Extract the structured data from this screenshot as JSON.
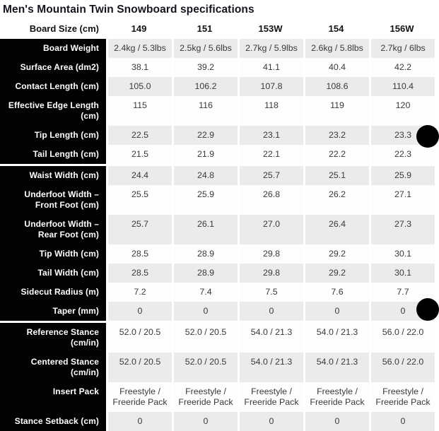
{
  "page": {
    "title": "Men's Mountain Twin Snowboard specifications"
  },
  "table": {
    "header": {
      "label": "Board Size (cm)",
      "columns": [
        "149",
        "151",
        "153W",
        "154",
        "156W"
      ]
    },
    "rows": [
      {
        "label": "Board Weight",
        "values": [
          "2.4kg / 5.3lbs",
          "2.5kg / 5.6lbs",
          "2.7kg / 5.9lbs",
          "2.6kg / 5.8lbs",
          "2.7kg / 6lbs"
        ],
        "group_start": false
      },
      {
        "label": "Surface Area (dm2)",
        "values": [
          "38.1",
          "39.2",
          "41.1",
          "40.4",
          "42.2"
        ],
        "group_start": false
      },
      {
        "label": "Contact Length (cm)",
        "values": [
          "105.0",
          "106.2",
          "107.8",
          "108.6",
          "110.4"
        ],
        "group_start": false
      },
      {
        "label": "Effective Edge Length (cm)",
        "values": [
          "115",
          "116",
          "118",
          "119",
          "120"
        ],
        "group_start": false
      },
      {
        "label": "Tip Length (cm)",
        "values": [
          "22.5",
          "22.9",
          "23.1",
          "23.2",
          "23.3"
        ],
        "group_start": false
      },
      {
        "label": "Tail Length (cm)",
        "values": [
          "21.5",
          "21.9",
          "22.1",
          "22.2",
          "22.3"
        ],
        "group_start": false
      },
      {
        "label": "Waist Width (cm)",
        "values": [
          "24.4",
          "24.8",
          "25.7",
          "25.1",
          "25.9"
        ],
        "group_start": true
      },
      {
        "label": "Underfoot Width – Front Foot (cm)",
        "values": [
          "25.5",
          "25.9",
          "26.8",
          "26.2",
          "27.1"
        ],
        "group_start": false
      },
      {
        "label": "Underfoot Width – Rear Foot (cm)",
        "values": [
          "25.7",
          "26.1",
          "27.0",
          "26.4",
          "27.3"
        ],
        "group_start": false
      },
      {
        "label": "Tip Width (cm)",
        "values": [
          "28.5",
          "28.9",
          "29.8",
          "29.2",
          "30.1"
        ],
        "group_start": false
      },
      {
        "label": "Tail Width (cm)",
        "values": [
          "28.5",
          "28.9",
          "29.8",
          "29.2",
          "30.1"
        ],
        "group_start": false
      },
      {
        "label": "Sidecut Radius (m)",
        "values": [
          "7.2",
          "7.4",
          "7.5",
          "7.6",
          "7.7"
        ],
        "group_start": false
      },
      {
        "label": "Taper (mm)",
        "values": [
          "0",
          "0",
          "0",
          "0",
          "0"
        ],
        "group_start": false
      },
      {
        "label": "Reference Stance (cm/in)",
        "values": [
          "52.0 / 20.5",
          "52.0 / 20.5",
          "54.0 / 21.3",
          "54.0 / 21.3",
          "56.0 / 22.0"
        ],
        "group_start": true
      },
      {
        "label": "Centered Stance (cm/in)",
        "values": [
          "52.0 / 20.5",
          "52.0 / 20.5",
          "54.0 / 21.3",
          "54.0 / 21.3",
          "56.0 / 22.0"
        ],
        "group_start": false
      },
      {
        "label": "Insert Pack",
        "values": [
          "Freestyle / Freeride Pack",
          "Freestyle / Freeride Pack",
          "Freestyle / Freeride Pack",
          "Freestyle / Freeride Pack",
          "Freestyle / Freeride Pack"
        ],
        "group_start": false
      },
      {
        "label": "Stance Setback (cm)",
        "values": [
          "0",
          "0",
          "0",
          "0",
          "0"
        ],
        "group_start": false
      }
    ]
  },
  "colors": {
    "label_bg": "#030303",
    "label_text": "#ffffff",
    "row_stripe": "#ebebeb",
    "row_alt": "#fdfdfd",
    "value_text": "#3a3a3a",
    "fab_bg": "#000000"
  }
}
